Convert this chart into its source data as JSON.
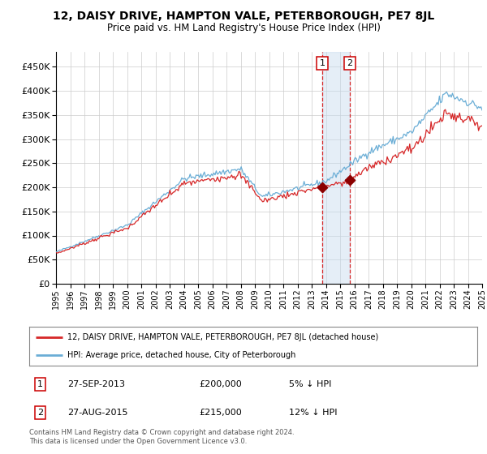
{
  "title": "12, DAISY DRIVE, HAMPTON VALE, PETERBOROUGH, PE7 8JL",
  "subtitle": "Price paid vs. HM Land Registry's House Price Index (HPI)",
  "legend_line1": "12, DAISY DRIVE, HAMPTON VALE, PETERBOROUGH, PE7 8JL (detached house)",
  "legend_line2": "HPI: Average price, detached house, City of Peterborough",
  "transaction1_date": "27-SEP-2013",
  "transaction1_price": "£200,000",
  "transaction1_hpi": "5% ↓ HPI",
  "transaction2_date": "27-AUG-2015",
  "transaction2_price": "£215,000",
  "transaction2_hpi": "12% ↓ HPI",
  "footer": "Contains HM Land Registry data © Crown copyright and database right 2024.\nThis data is licensed under the Open Government Licence v3.0.",
  "hpi_line_color": "#6baed6",
  "price_line_color": "#d62728",
  "dot_color": "#8b0000",
  "vline_color": "#d62728",
  "shade_color": "#c6dbef",
  "background_color": "#ffffff",
  "grid_color": "#cccccc",
  "ylim": [
    0,
    480000
  ],
  "yticks": [
    0,
    50000,
    100000,
    150000,
    200000,
    250000,
    300000,
    350000,
    400000,
    450000
  ],
  "start_year": 1995,
  "end_year": 2025,
  "t1_year": 2013.75,
  "t2_year": 2015.67,
  "t1_price": 200000,
  "t2_price": 215000
}
